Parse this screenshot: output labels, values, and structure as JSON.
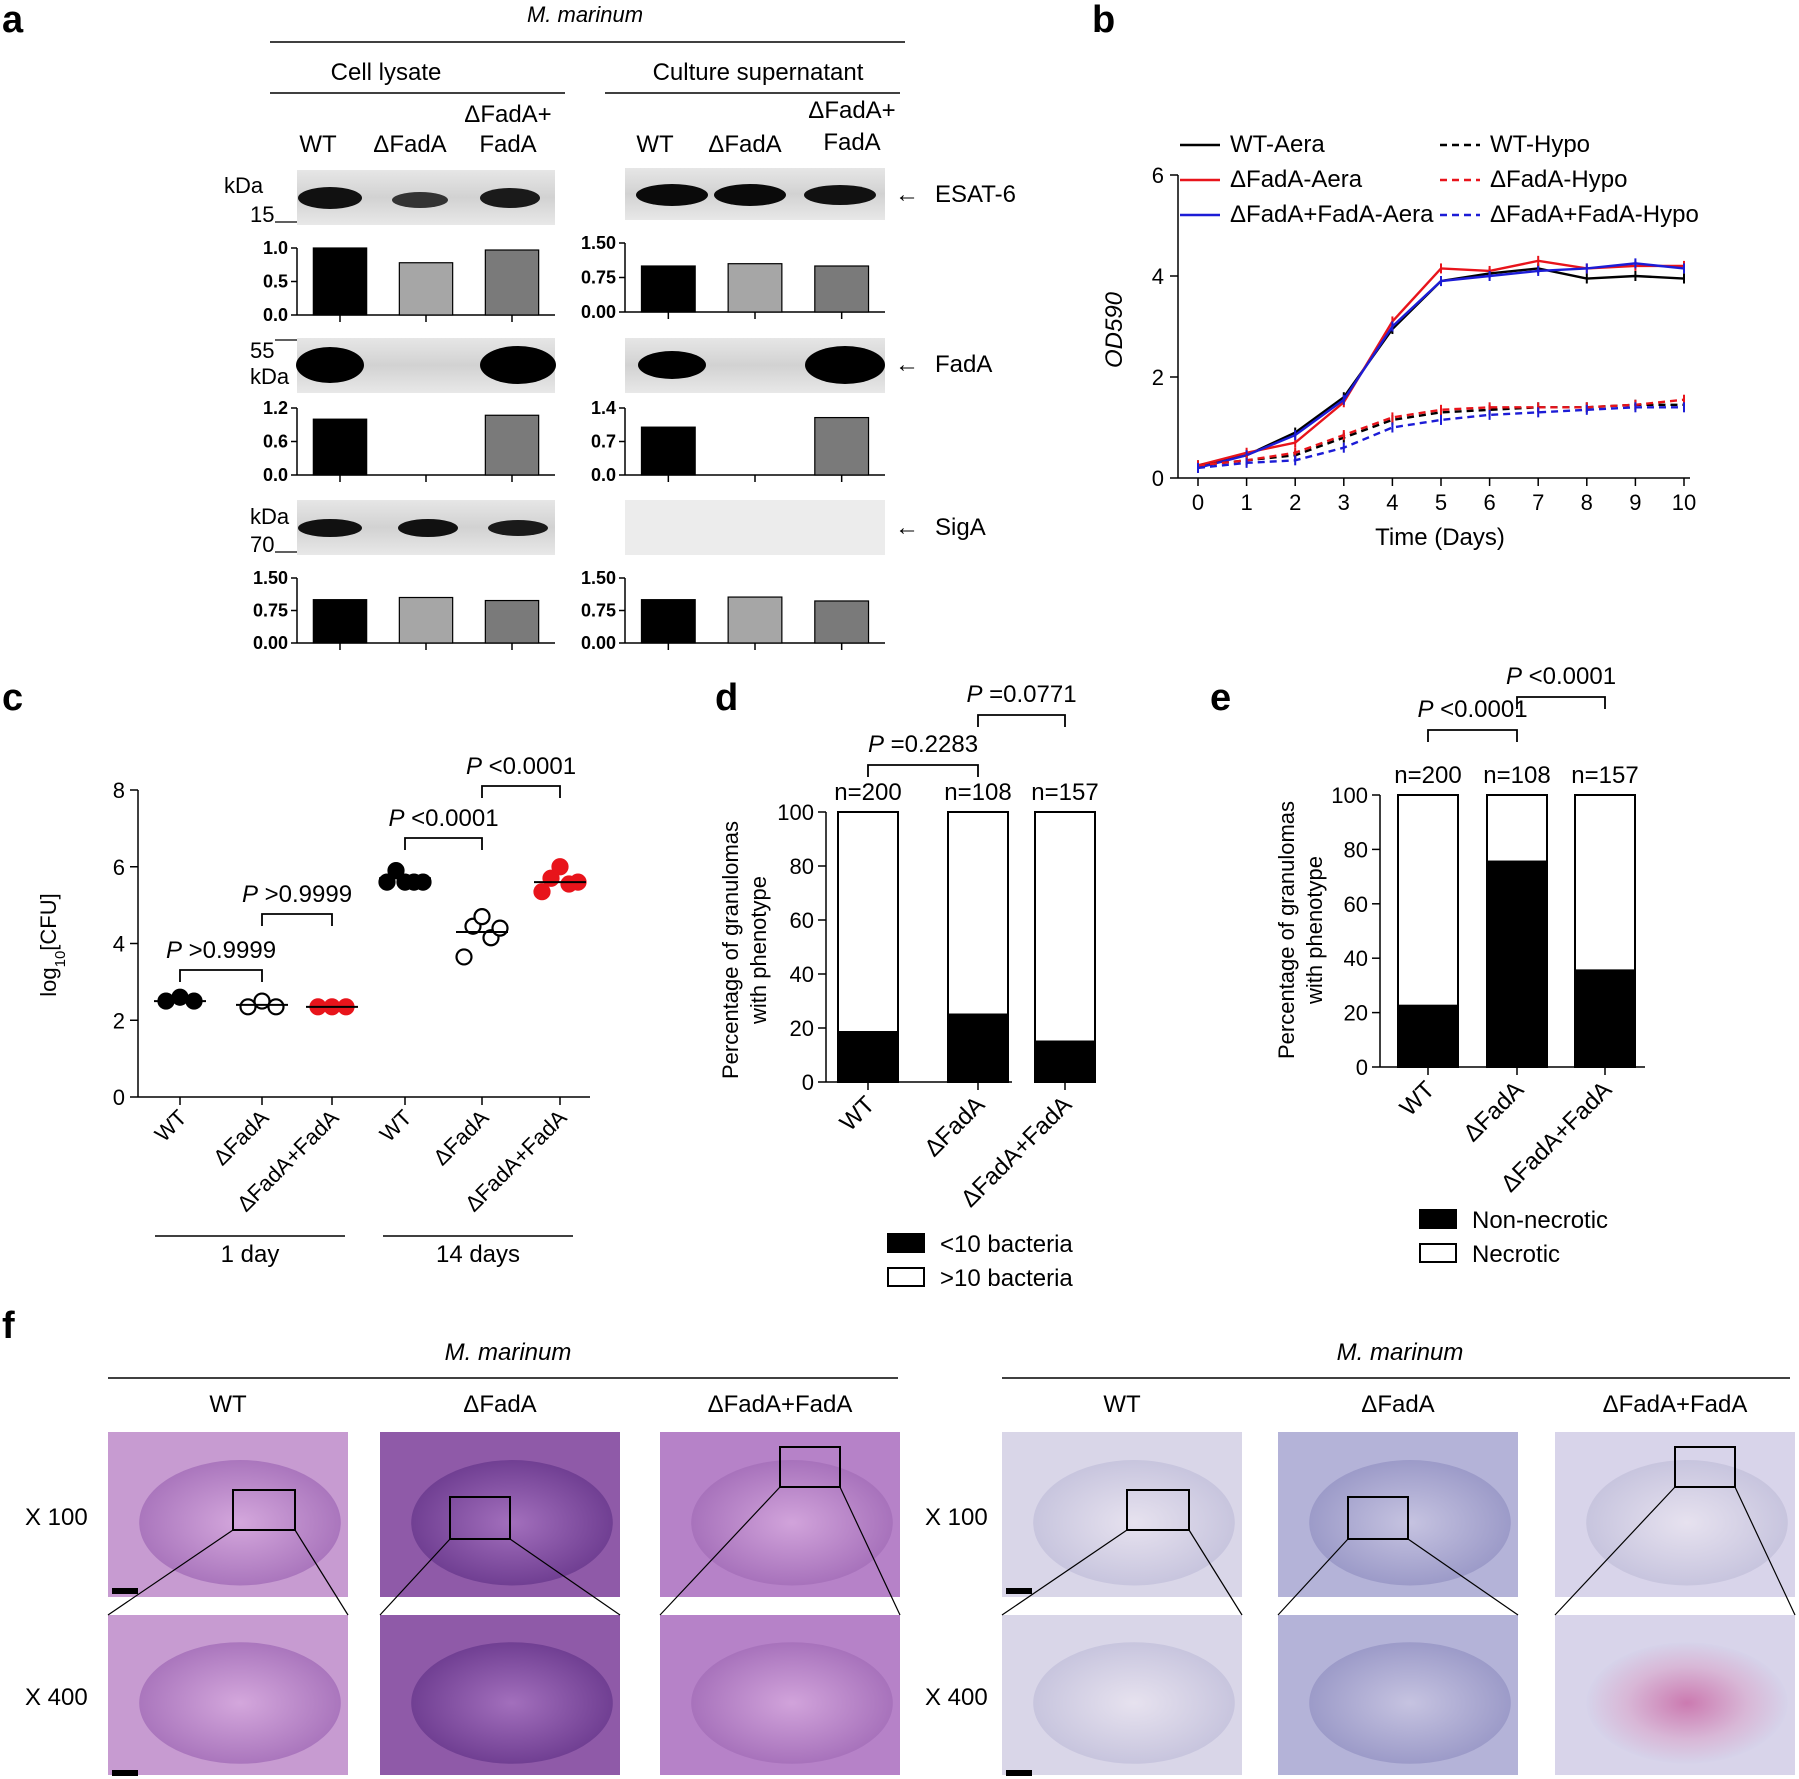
{
  "panels": {
    "a": "a",
    "b": "b",
    "c": "c",
    "d": "d",
    "e": "e",
    "f": "f"
  },
  "panel_a": {
    "species": "M. marinum",
    "groups": [
      "Cell lysate",
      "Culture supernatant"
    ],
    "lanes": [
      "WT",
      "ΔFadA",
      "ΔFadA+",
      "FadA"
    ],
    "laneLabels": [
      "WT",
      "ΔFadA",
      "ΔFadA+FadA"
    ],
    "blots": [
      {
        "protein": "ESAT-6",
        "kda": "kDa",
        "marker": "15"
      },
      {
        "protein": "FadA",
        "kda": "kDa",
        "marker": "55"
      },
      {
        "protein": "SigA",
        "kda": "kDa",
        "marker": "70"
      }
    ],
    "arrow": "←"
  },
  "chart_data": [
    {
      "panel": "a",
      "type": "bar",
      "title": "",
      "group": "Cell lysate",
      "protein": "ESAT-6",
      "categories": [
        "WT",
        "ΔFadA",
        "ΔFadA+FadA"
      ],
      "values": [
        1.0,
        0.78,
        0.97
      ],
      "ylim": [
        0,
        1.0
      ],
      "yticks": [
        "0.0",
        "0.5",
        "1.0"
      ],
      "colors": [
        "#000000",
        "#a6a6a6",
        "#7a7a7a"
      ]
    },
    {
      "panel": "a",
      "type": "bar",
      "title": "",
      "group": "Culture supernatant",
      "protein": "ESAT-6",
      "categories": [
        "WT",
        "ΔFadA",
        "ΔFadA+FadA"
      ],
      "values": [
        1.0,
        1.05,
        1.0
      ],
      "ylim": [
        0,
        1.5
      ],
      "yticks": [
        "0.00",
        "0.75",
        "1.50"
      ],
      "colors": [
        "#000000",
        "#a6a6a6",
        "#7a7a7a"
      ]
    },
    {
      "panel": "a",
      "type": "bar",
      "title": "",
      "group": "Cell lysate",
      "protein": "FadA",
      "categories": [
        "WT",
        "ΔFadA",
        "ΔFadA+FadA"
      ],
      "values": [
        1.0,
        0.0,
        1.07
      ],
      "ylim": [
        0,
        1.2
      ],
      "yticks": [
        "0.0",
        "0.6",
        "1.2"
      ],
      "colors": [
        "#000000",
        "#a6a6a6",
        "#7a7a7a"
      ]
    },
    {
      "panel": "a",
      "type": "bar",
      "title": "",
      "group": "Culture supernatant",
      "protein": "FadA",
      "categories": [
        "WT",
        "ΔFadA",
        "ΔFadA+FadA"
      ],
      "values": [
        1.0,
        0.0,
        1.2
      ],
      "ylim": [
        0,
        1.4
      ],
      "yticks": [
        "0.0",
        "0.7",
        "1.4"
      ],
      "colors": [
        "#000000",
        "#a6a6a6",
        "#7a7a7a"
      ]
    },
    {
      "panel": "a",
      "type": "bar",
      "title": "",
      "group": "Cell lysate",
      "protein": "SigA",
      "categories": [
        "WT",
        "ΔFadA",
        "ΔFadA+FadA"
      ],
      "values": [
        1.0,
        1.05,
        0.98
      ],
      "ylim": [
        0,
        1.5
      ],
      "yticks": [
        "0.00",
        "0.75",
        "1.50"
      ],
      "colors": [
        "#000000",
        "#a6a6a6",
        "#7a7a7a"
      ]
    },
    {
      "panel": "a",
      "type": "bar",
      "title": "",
      "group": "Culture supernatant",
      "protein": "SigA",
      "categories": [
        "WT",
        "ΔFadA",
        "ΔFadA+FadA"
      ],
      "values": [
        1.0,
        1.06,
        0.97
      ],
      "ylim": [
        0,
        1.5
      ],
      "yticks": [
        "0.00",
        "0.75",
        "1.50"
      ],
      "colors": [
        "#000000",
        "#a6a6a6",
        "#7a7a7a"
      ]
    },
    {
      "panel": "b",
      "type": "line",
      "title": "",
      "xlabel": "Time  (Days)",
      "ylabel": "OD590",
      "x": [
        0,
        1,
        2,
        3,
        4,
        5,
        6,
        7,
        8,
        9,
        10
      ],
      "xlim": [
        0,
        10
      ],
      "ylim": [
        0,
        6
      ],
      "xticks": [
        "0",
        "1",
        "2",
        "3",
        "4",
        "5",
        "6",
        "7",
        "8",
        "9",
        "10"
      ],
      "yticks": [
        "0",
        "2",
        "4",
        "6"
      ],
      "series": [
        {
          "name": "WT-Aera",
          "color": "#000000",
          "dash": "solid",
          "values": [
            0.25,
            0.45,
            0.9,
            1.6,
            2.95,
            3.9,
            4.05,
            4.15,
            3.95,
            4.0,
            3.95
          ]
        },
        {
          "name": "ΔFadA-Aera",
          "color": "#e8141b",
          "dash": "solid",
          "values": [
            0.25,
            0.5,
            0.7,
            1.5,
            3.1,
            4.15,
            4.1,
            4.3,
            4.15,
            4.2,
            4.2
          ]
        },
        {
          "name": "ΔFadA+FadA-Aera",
          "color": "#1c1cd6",
          "dash": "solid",
          "values": [
            0.2,
            0.45,
            0.85,
            1.55,
            3.0,
            3.9,
            4.0,
            4.1,
            4.15,
            4.25,
            4.15
          ]
        },
        {
          "name": "WT-Hypo",
          "color": "#000000",
          "dash": "dashed",
          "values": [
            0.25,
            0.35,
            0.45,
            0.8,
            1.15,
            1.3,
            1.35,
            1.4,
            1.4,
            1.45,
            1.45
          ]
        },
        {
          "name": "ΔFadA-Hypo",
          "color": "#e8141b",
          "dash": "dashed",
          "values": [
            0.25,
            0.35,
            0.5,
            0.85,
            1.2,
            1.35,
            1.4,
            1.4,
            1.4,
            1.45,
            1.55
          ]
        },
        {
          "name": "ΔFadA+FadA-Hypo",
          "color": "#1c1cd6",
          "dash": "dashed",
          "values": [
            0.2,
            0.3,
            0.35,
            0.6,
            1.0,
            1.15,
            1.25,
            1.3,
            1.35,
            1.4,
            1.4
          ]
        }
      ]
    },
    {
      "panel": "c",
      "type": "scatter",
      "title": "",
      "ylabel": "log",
      "ylabel_sub": "10",
      "ylabel_tail": "[CFU]",
      "ylim": [
        0,
        8
      ],
      "yticks": [
        "0",
        "2",
        "4",
        "6",
        "8"
      ],
      "categories": [
        "WT",
        "ΔFadA",
        "ΔFadA+FadA",
        "WT",
        "ΔFadA",
        "ΔFadA+FadA"
      ],
      "timepoints": [
        "1 day",
        "14 days"
      ],
      "groups": [
        {
          "label": "WT",
          "time": "1 day",
          "fill": "#000000",
          "stroke": "#000000",
          "means": 2.5,
          "values": [
            2.5,
            2.6,
            2.5
          ]
        },
        {
          "label": "ΔFadA",
          "time": "1 day",
          "fill": "#ffffff",
          "stroke": "#000000",
          "means": 2.4,
          "values": [
            2.35,
            2.5,
            2.35
          ]
        },
        {
          "label": "ΔFadA+FadA",
          "time": "1 day",
          "fill": "#e8141b",
          "stroke": "#e8141b",
          "means": 2.35,
          "values": [
            2.35,
            2.35,
            2.35
          ]
        },
        {
          "label": "WT",
          "time": "14 days",
          "fill": "#000000",
          "stroke": "#000000",
          "means": 5.7,
          "values": [
            5.6,
            5.9,
            5.6,
            5.6,
            5.6
          ]
        },
        {
          "label": "ΔFadA",
          "time": "14 days",
          "fill": "#ffffff",
          "stroke": "#000000",
          "means": 4.3,
          "values": [
            3.65,
            4.45,
            4.7,
            4.15,
            4.4
          ]
        },
        {
          "label": "ΔFadA+FadA",
          "time": "14 days",
          "fill": "#e8141b",
          "stroke": "#e8141b",
          "means": 5.6,
          "values": [
            5.35,
            5.7,
            6.0,
            5.55,
            5.6
          ]
        }
      ],
      "pvalues": [
        {
          "text": "P >0.9999",
          "from": 0,
          "to": 1
        },
        {
          "text": "P >0.9999",
          "from": 1,
          "to": 2
        },
        {
          "text": "P <0.0001",
          "from": 3,
          "to": 4
        },
        {
          "text": "P <0.0001",
          "from": 4,
          "to": 5
        }
      ]
    },
    {
      "panel": "d",
      "type": "bar",
      "stacked": true,
      "title": "",
      "ylabel": "Percentage of granulomas",
      "ylabel2": "with phenotype",
      "categories": [
        "WT",
        "ΔFadA",
        "ΔFadA+FadA"
      ],
      "n": [
        "n=200",
        "n=108",
        "n=157"
      ],
      "ylim": [
        0,
        100
      ],
      "yticks": [
        "0",
        "20",
        "40",
        "60",
        "80",
        "100"
      ],
      "series": [
        {
          "name": "<10 bacteria",
          "color": "#000000",
          "values": [
            18.5,
            25,
            15
          ]
        },
        {
          "name": ">10 bacteria",
          "color": "#ffffff",
          "values": [
            81.5,
            75,
            85
          ]
        }
      ],
      "pvalues": [
        {
          "text": "P =0.2283",
          "from": 0,
          "to": 1
        },
        {
          "text": "P =0.0771",
          "from": 1,
          "to": 2
        }
      ]
    },
    {
      "panel": "e",
      "type": "bar",
      "stacked": true,
      "title": "",
      "ylabel": "Percentage of granulomas",
      "ylabel2": "with phenotype",
      "categories": [
        "WT",
        "ΔFadA",
        "ΔFadA+FadA"
      ],
      "n": [
        "n=200",
        "n=108",
        "n=157"
      ],
      "ylim": [
        0,
        100
      ],
      "yticks": [
        "0",
        "20",
        "40",
        "60",
        "80",
        "100"
      ],
      "series": [
        {
          "name": "Non-necrotic",
          "color": "#000000",
          "values": [
            22.5,
            75.5,
            35.5
          ]
        },
        {
          "name": "Necrotic",
          "color": "#ffffff",
          "values": [
            77.5,
            24.5,
            64.5
          ]
        }
      ],
      "pvalues": [
        {
          "text": "P <0.0001",
          "from": 0,
          "to": 1
        },
        {
          "text": "P <0.0001",
          "from": 1,
          "to": 2
        }
      ]
    }
  ],
  "panel_f": {
    "species": "M. marinum",
    "strains": [
      "WT",
      "ΔFadA",
      "ΔFadA+FadA"
    ],
    "magnifications": [
      "X 100",
      "X 400"
    ],
    "he_colors": [
      "#c79bd1",
      "#8f5aa8",
      "#b682c8"
    ],
    "zn_colors": [
      "#d9d6e8",
      "#b4b3d8",
      "#d8d4ea"
    ]
  }
}
